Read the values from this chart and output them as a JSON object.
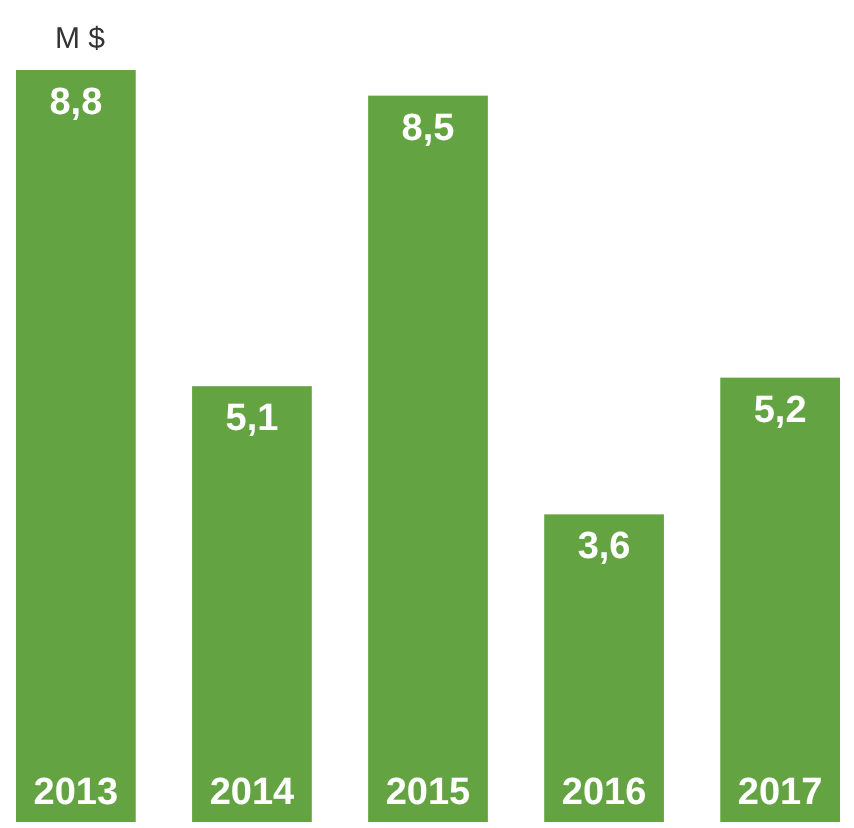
{
  "chart_data": {
    "type": "bar",
    "ylabel": "M $",
    "categories": [
      "2013",
      "2014",
      "2015",
      "2016",
      "2017"
    ],
    "values": [
      8.8,
      5.1,
      8.5,
      3.6,
      5.2
    ],
    "value_labels": [
      "8,8",
      "5,1",
      "8,5",
      "3,6",
      "5,2"
    ],
    "color": "#64a342"
  }
}
